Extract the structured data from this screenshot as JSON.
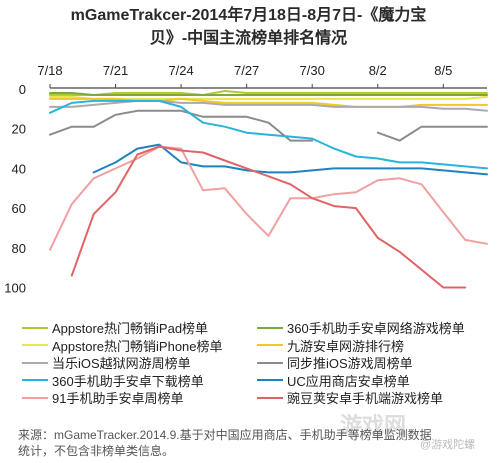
{
  "title_line1": "mGameTrakcer-2014年7月18日-8月7日-《魔力宝",
  "title_line2": "贝》-中国主流榜单排名情况",
  "note_line1": "来源：mGameTracker.2014.9.基于对中国应用商店、手机助手等榜单监测数据",
  "note_line2": "统计，不包含非榜单类信息。",
  "watermark": "游戏网",
  "watermark_sub": "@游戏陀螺",
  "chart_data": {
    "type": "line",
    "title": "mGameTrakcer-2014年7月18日-8月7日-《魔力宝贝》-中国主流榜单排名情况",
    "x_ticks": [
      "7/18",
      "7/21",
      "7/24",
      "7/27",
      "7/30",
      "8/2",
      "8/5"
    ],
    "x": [
      "7/18",
      "7/19",
      "7/20",
      "7/21",
      "7/22",
      "7/23",
      "7/24",
      "7/25",
      "7/26",
      "7/27",
      "7/28",
      "7/29",
      "7/30",
      "7/31",
      "8/1",
      "8/2",
      "8/3",
      "8/4",
      "8/5",
      "8/6",
      "8/7"
    ],
    "y_ticks": [
      0,
      20,
      40,
      60,
      80,
      100
    ],
    "ylim": [
      0,
      105
    ],
    "y_inverted": true,
    "grid": false,
    "series": [
      {
        "name": "Appstore热门畅销iPad榜单",
        "color": "#b4c832",
        "values": [
          3,
          3,
          3,
          2,
          2,
          2,
          2,
          3,
          1,
          2,
          2,
          2,
          2,
          2,
          2,
          2,
          2,
          2,
          2,
          2,
          2
        ]
      },
      {
        "name": "360手机助手安卓网络游戏榜单",
        "color": "#78aa3c",
        "values": [
          2,
          2,
          3,
          3,
          3,
          3,
          3,
          3,
          3,
          3,
          3,
          3,
          3,
          3,
          3,
          3,
          3,
          3,
          3,
          3,
          3
        ]
      },
      {
        "name": "Appstore热门畅销iPhone榜单",
        "color": "#e6e650",
        "values": [
          4,
          4,
          5,
          5,
          5,
          5,
          5,
          5,
          5,
          5,
          5,
          5,
          5,
          5,
          5,
          5,
          5,
          5,
          5,
          5,
          4
        ]
      },
      {
        "name": "九游安卓网游排行榜",
        "color": "#f0c828",
        "values": [
          5,
          5,
          5,
          5,
          6,
          6,
          5,
          6,
          7,
          7,
          7,
          7,
          7,
          8,
          9,
          9,
          9,
          8,
          8,
          8,
          8
        ]
      },
      {
        "name": "当乐iOS越狱网游周榜单",
        "color": "#aaaaaa",
        "values": [
          9,
          9,
          8,
          7,
          6,
          6,
          7,
          7,
          8,
          8,
          8,
          8,
          8,
          9,
          9,
          9,
          9,
          9,
          10,
          10,
          11
        ]
      },
      {
        "name": "同步推iOS游戏周榜单",
        "color": "#8c8c8c",
        "values": [
          23,
          19,
          19,
          13,
          11,
          11,
          11,
          14,
          14,
          14,
          17,
          26,
          26,
          null,
          null,
          22,
          26,
          19,
          19,
          19,
          19
        ]
      },
      {
        "name": "360手机助手安卓下载榜单",
        "color": "#28b4dc",
        "values": [
          12,
          7,
          6,
          6,
          6,
          6,
          9,
          17,
          19,
          22,
          23,
          24,
          25,
          30,
          34,
          35,
          37,
          37,
          38,
          39,
          40
        ]
      },
      {
        "name": "UC应用商店安卓榜单",
        "color": "#1e82be",
        "values": [
          null,
          null,
          42,
          37,
          30,
          28,
          37,
          39,
          39,
          41,
          42,
          42,
          41,
          40,
          40,
          40,
          40,
          40,
          41,
          42,
          43
        ]
      },
      {
        "name": "91手机助手安卓周榜单",
        "color": "#f0a0a0",
        "values": [
          81,
          58,
          45,
          40,
          35,
          29,
          30,
          51,
          50,
          63,
          74,
          55,
          55,
          53,
          52,
          46,
          45,
          48,
          62,
          76,
          78
        ]
      },
      {
        "name": "豌豆荚安卓手机端游戏榜单",
        "color": "#e06464",
        "values": [
          null,
          94,
          63,
          52,
          33,
          29,
          31,
          32,
          36,
          40,
          44,
          48,
          55,
          59,
          60,
          75,
          82,
          91,
          100,
          100,
          null
        ]
      }
    ]
  }
}
